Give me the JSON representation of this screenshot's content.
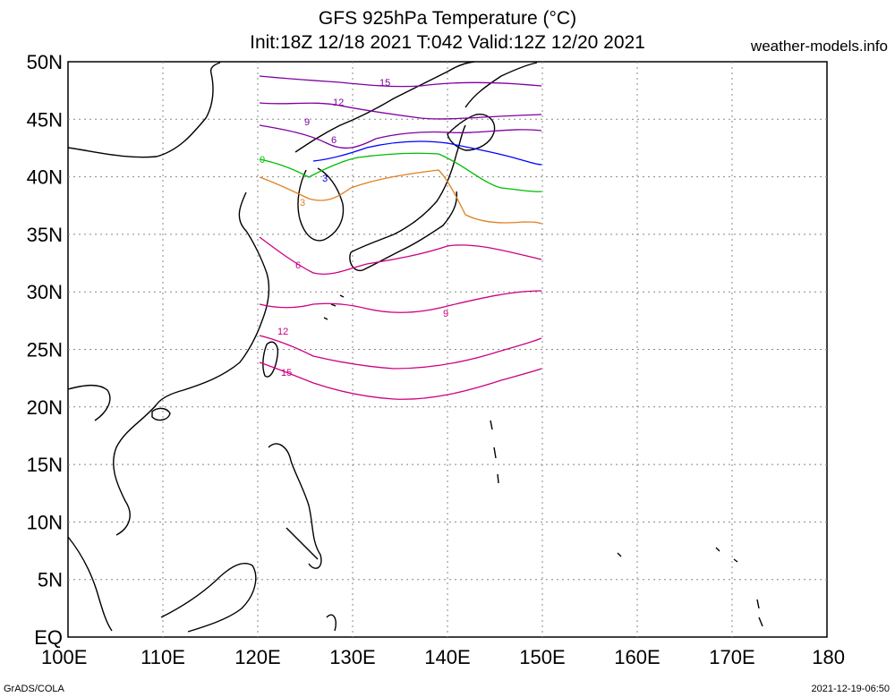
{
  "header": {
    "title_line1": "GFS 925hPa Temperature (°C)",
    "title_line2": "Init:18Z 12/18 2021 T:042 Valid:12Z 12/20 2021",
    "site": "weather-models.info"
  },
  "footer": {
    "left": "GrADS/COLA",
    "right": "2021-12-19-06:50"
  },
  "axes": {
    "y_labels": [
      "50N",
      "45N",
      "40N",
      "35N",
      "30N",
      "25N",
      "20N",
      "15N",
      "10N",
      "5N",
      "EQ"
    ],
    "x_labels": [
      "100E",
      "110E",
      "120E",
      "130E",
      "140E",
      "150E",
      "160E",
      "170E",
      "180"
    ]
  },
  "map": {
    "lon_range": [
      100,
      180
    ],
    "lat_range": [
      0,
      50
    ],
    "grid": "dotted",
    "data_domain": {
      "lon": [
        120,
        150
      ],
      "lat": [
        20,
        50
      ]
    }
  },
  "contours": [
    {
      "value": 15,
      "color": "#8000a0",
      "label": "15"
    },
    {
      "value": 12,
      "color": "#8000a0",
      "label": "12"
    },
    {
      "value": 9,
      "color": "#8000a0",
      "label": "9"
    },
    {
      "value": 6,
      "color": "#8000a0",
      "label": "6"
    },
    {
      "value": 3,
      "color": "#0000ff",
      "label": "3"
    },
    {
      "value": 0,
      "color": "#00cc00",
      "label": "0"
    },
    {
      "value": 3,
      "color": "#e08020",
      "label": "3"
    },
    {
      "value": 6,
      "color": "#cc0080",
      "label": "6"
    },
    {
      "value": 9,
      "color": "#cc0080",
      "label": "9"
    },
    {
      "value": 12,
      "color": "#cc0080",
      "label": "12"
    },
    {
      "value": 15,
      "color": "#cc0080",
      "label": "15"
    }
  ]
}
